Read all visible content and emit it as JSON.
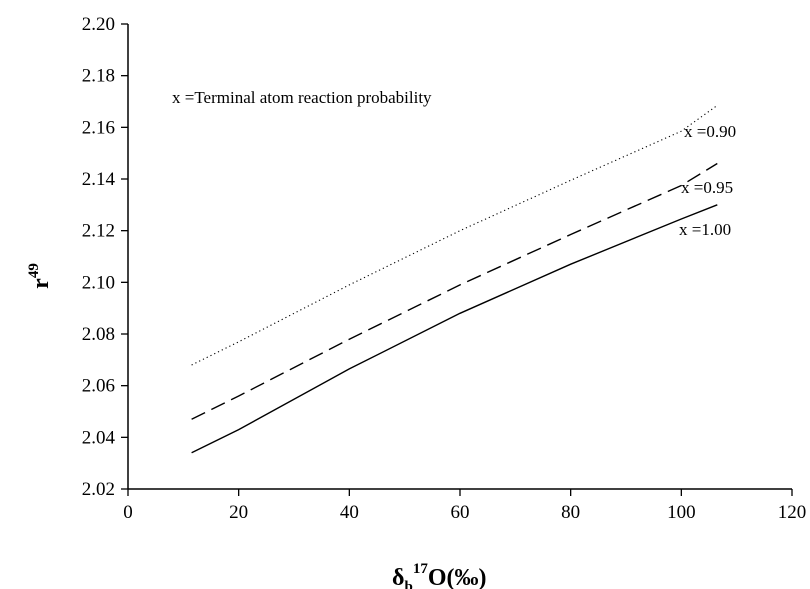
{
  "chart_data": {
    "type": "line",
    "xlim": [
      0,
      120
    ],
    "ylim": [
      2.02,
      2.2
    ],
    "x_ticks": [
      "0",
      "20",
      "40",
      "60",
      "80",
      "100",
      "120"
    ],
    "y_ticks": [
      "2.02",
      "2.04",
      "2.06",
      "2.08",
      "2.10",
      "2.12",
      "2.14",
      "2.16",
      "2.18",
      "2.20"
    ],
    "xlabel": {
      "base": "δ",
      "sub": "b",
      "sup": "17",
      "rest": "O(‰)"
    },
    "ylabel": {
      "base": "r",
      "sup": "49"
    },
    "annotation": "x =Terminal atom reaction probability",
    "grid": false,
    "series": [
      {
        "name": "x =0.90",
        "style": "dotted",
        "x": [
          11.5,
          20,
          40,
          60,
          80,
          100,
          106.5
        ],
        "y": [
          2.068,
          2.077,
          2.099,
          2.12,
          2.1395,
          2.1585,
          2.1685
        ]
      },
      {
        "name": "x =0.95",
        "style": "dashed",
        "x": [
          11.5,
          20,
          40,
          60,
          80,
          100,
          106.5
        ],
        "y": [
          2.047,
          2.056,
          2.078,
          2.099,
          2.1185,
          2.1375,
          2.146
        ]
      },
      {
        "name": "x =1.00",
        "style": "solid",
        "x": [
          11.5,
          20,
          40,
          60,
          80,
          100,
          106.5
        ],
        "y": [
          2.034,
          2.043,
          2.0665,
          2.088,
          2.107,
          2.1245,
          2.13
        ]
      }
    ]
  }
}
